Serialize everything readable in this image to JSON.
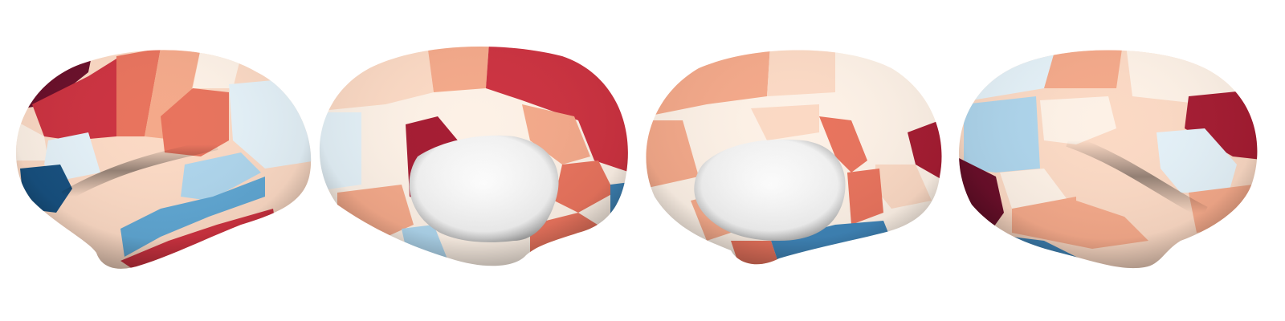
{
  "figure": {
    "views": [
      {
        "name": "left-lateral"
      },
      {
        "name": "left-medial"
      },
      {
        "name": "right-medial"
      },
      {
        "name": "right-lateral"
      }
    ],
    "palette": {
      "dark_red": "#6a0f2a",
      "red": "#cc3240",
      "salmon": "#e8735d",
      "peach": "#f4a98a",
      "light_peach": "#fbd9c4",
      "cream": "#fdf1e6",
      "white": "#ffffff",
      "ice": "#e4f1f8",
      "light_blue": "#aed5ec",
      "mid_blue": "#5fa6d2",
      "steel_blue": "#3f84b7",
      "dark_blue": "#17507f"
    }
  }
}
